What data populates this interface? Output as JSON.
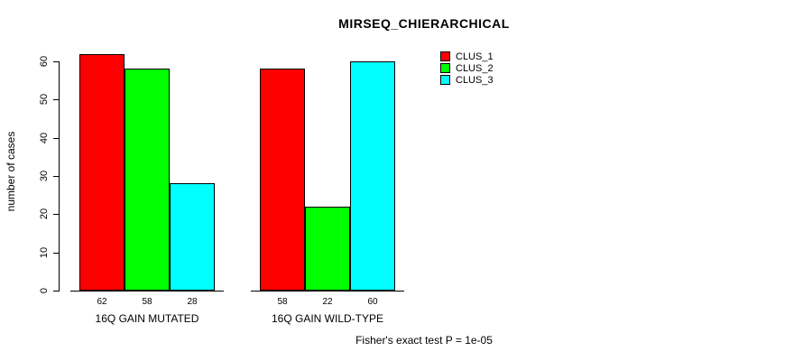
{
  "chart_data": {
    "type": "bar",
    "title": "MIRSEQ_CHIERARCHICAL",
    "ylabel": "number of cases",
    "xlabel": "",
    "ylim": [
      0,
      60
    ],
    "yticks": [
      0,
      10,
      20,
      30,
      40,
      50,
      60
    ],
    "categories": [
      "16Q GAIN MUTATED",
      "16Q GAIN WILD-TYPE"
    ],
    "series": [
      {
        "name": "CLUS_1",
        "color": "#ff0000",
        "values": [
          62,
          58
        ]
      },
      {
        "name": "CLUS_2",
        "color": "#00ff00",
        "values": [
          58,
          22
        ]
      },
      {
        "name": "CLUS_3",
        "color": "#00ffff",
        "values": [
          28,
          60
        ]
      }
    ],
    "bar_labels": [
      [
        62,
        58,
        28
      ],
      [
        58,
        22,
        60
      ]
    ],
    "legend_position": "top-right",
    "grid": false,
    "annotation": "Fisher's exact test P = 1e-05"
  }
}
